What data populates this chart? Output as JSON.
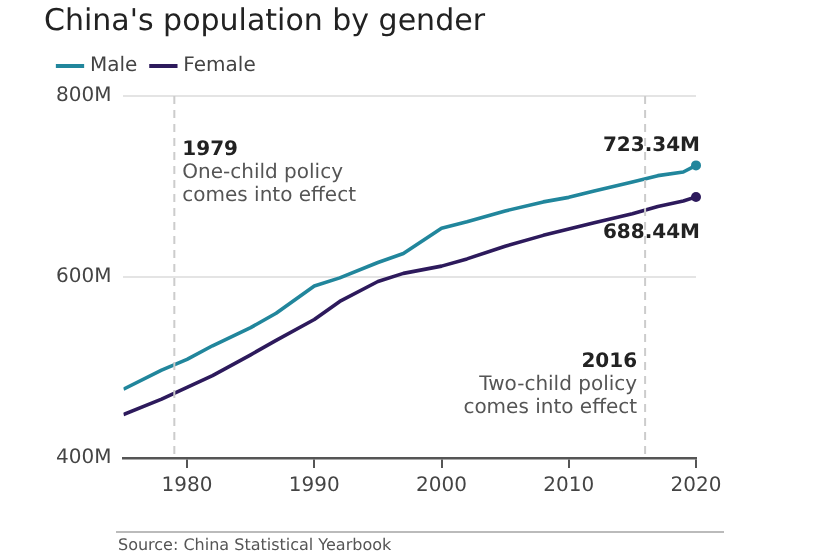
{
  "chart_data": {
    "type": "line",
    "title": "China's population by gender",
    "x": [
      1975,
      1978,
      1980,
      1982,
      1985,
      1987,
      1990,
      1992,
      1995,
      1997,
      2000,
      2002,
      2005,
      2008,
      2010,
      2012,
      2015,
      2017,
      2019,
      2020
    ],
    "series": [
      {
        "name": "Male",
        "color": "#21869c",
        "values": [
          476,
          497,
          509,
          524,
          544,
          560,
          590,
          599,
          616,
          626,
          654,
          661,
          673,
          683,
          688,
          695,
          705,
          712,
          716,
          723.34
        ]
      },
      {
        "name": "Female",
        "color": "#2d1a5c",
        "values": [
          448,
          465,
          478,
          491,
          514,
          530,
          553,
          573,
          595,
          604,
          612,
          620,
          634,
          646,
          653,
          660,
          670,
          678,
          684,
          688.44
        ]
      }
    ],
    "xlim": [
      1975,
      2020
    ],
    "xticks": [
      1980,
      1990,
      2000,
      2010,
      2020
    ],
    "ylim": [
      400,
      800
    ],
    "yticks": [
      {
        "value": 400,
        "label": "400M"
      },
      {
        "value": 600,
        "label": "600M"
      },
      {
        "value": 800,
        "label": "800M"
      }
    ],
    "grid": "y",
    "legend": "top left",
    "marker": "none",
    "line_style": "solid",
    "ref_lines": [
      {
        "axis": "x",
        "value": 1979,
        "label": "1979\nOne-child policy\ncomes into effect",
        "line_style": "dashed"
      },
      {
        "axis": "x",
        "value": 2016,
        "label": "2016\nTwo-child policy\ncomes into effect",
        "line_style": "dashed"
      }
    ],
    "annotations": [
      {
        "text": "723.34M",
        "x": 2020,
        "y": 723.34
      },
      {
        "text": "688.44M",
        "x": 2020,
        "y": 688.44
      },
      "Source: China Statistical Yearbook"
    ]
  }
}
